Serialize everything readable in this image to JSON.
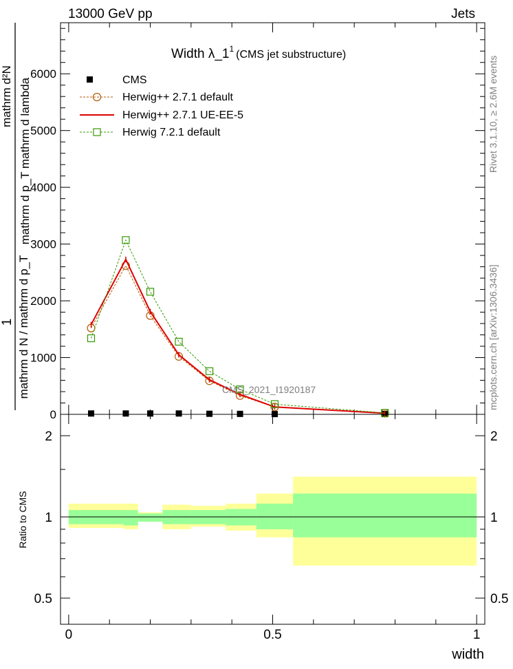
{
  "header": {
    "left": "13000 GeV pp",
    "right": "Jets"
  },
  "main_panel": {
    "title_main": "Width λ_1",
    "title_sup": "1",
    "title_sub": "(CMS jet substructure)",
    "ylabel_numer": "mathrm d²N",
    "ylabel_denom": "mathrm d p_T mathrm d lambda",
    "ylabel_prefix": "1",
    "ylabel_secondary": "mathrm d N / mathrm d p_T",
    "y_tick_labels": [
      "0",
      "1000",
      "2000",
      "3000",
      "4000",
      "5000",
      "6000"
    ],
    "watermark": "CMS_2021_I1920187",
    "legend": [
      "CMS",
      "Herwig++ 2.7.1 default",
      "Herwig++ 2.7.1 UE-EE-5",
      "Herwig 7.2.1 default"
    ]
  },
  "side_labels": {
    "rivet": "Rivet 3.1.10, ≥ 2.6M events",
    "mcplots": "mcplots.cern.ch [arXiv:1306.3436]"
  },
  "ratio_panel": {
    "ylabel": "Ratio to CMS",
    "y_tick_labels": [
      "0.5",
      "1",
      "2"
    ],
    "x_tick_labels": [
      "0",
      "0.5",
      "1"
    ],
    "xlabel": "width"
  },
  "chart_data": [
    {
      "type": "line",
      "xlim": [
        -0.02,
        1.02
      ],
      "ylim": [
        0,
        6900
      ],
      "x_bin_centers": [
        0.055,
        0.14,
        0.2,
        0.27,
        0.345,
        0.42,
        0.505,
        0.775
      ],
      "series": [
        {
          "name": "CMS",
          "marker": "filled-square",
          "color": "#000000",
          "values": [
            15,
            15,
            15,
            15,
            10,
            8,
            5,
            5
          ]
        },
        {
          "name": "Herwig++ 2.7.1 default",
          "marker": "open-circle",
          "color": "#b35900",
          "line": "dashed",
          "values": [
            1520,
            2620,
            1740,
            1020,
            590,
            330,
            130,
            20
          ]
        },
        {
          "name": "Herwig++ 2.7.1 UE-EE-5",
          "marker": "none",
          "color": "#e00000",
          "line": "solid",
          "values": [
            1580,
            2730,
            1810,
            1050,
            610,
            350,
            130,
            20
          ]
        },
        {
          "name": "Herwig 7.2.1 default",
          "marker": "open-square",
          "color": "#339900",
          "line": "dashed",
          "values": [
            1340,
            3070,
            2160,
            1280,
            760,
            440,
            180,
            25
          ]
        }
      ]
    },
    {
      "type": "area",
      "xlim": [
        -0.02,
        1.02
      ],
      "ylim": [
        0.4,
        2.4
      ],
      "y_scale": "log",
      "x_bin_edges": [
        0.0,
        0.135,
        0.17,
        0.23,
        0.3,
        0.385,
        0.46,
        0.55,
        1.0
      ],
      "band_inner": {
        "color": "#99ff99",
        "low": [
          0.94,
          0.93,
          0.96,
          0.94,
          0.94,
          0.93,
          0.9,
          0.84
        ],
        "high": [
          1.06,
          1.06,
          1.03,
          1.06,
          1.06,
          1.07,
          1.12,
          1.22
        ]
      },
      "band_outer": {
        "color": "#ffff99",
        "low": [
          0.91,
          0.9,
          0.96,
          0.9,
          0.92,
          0.89,
          0.84,
          0.66
        ],
        "high": [
          1.12,
          1.12,
          1.04,
          1.11,
          1.1,
          1.12,
          1.22,
          1.41
        ]
      },
      "reference_line": 1
    }
  ]
}
